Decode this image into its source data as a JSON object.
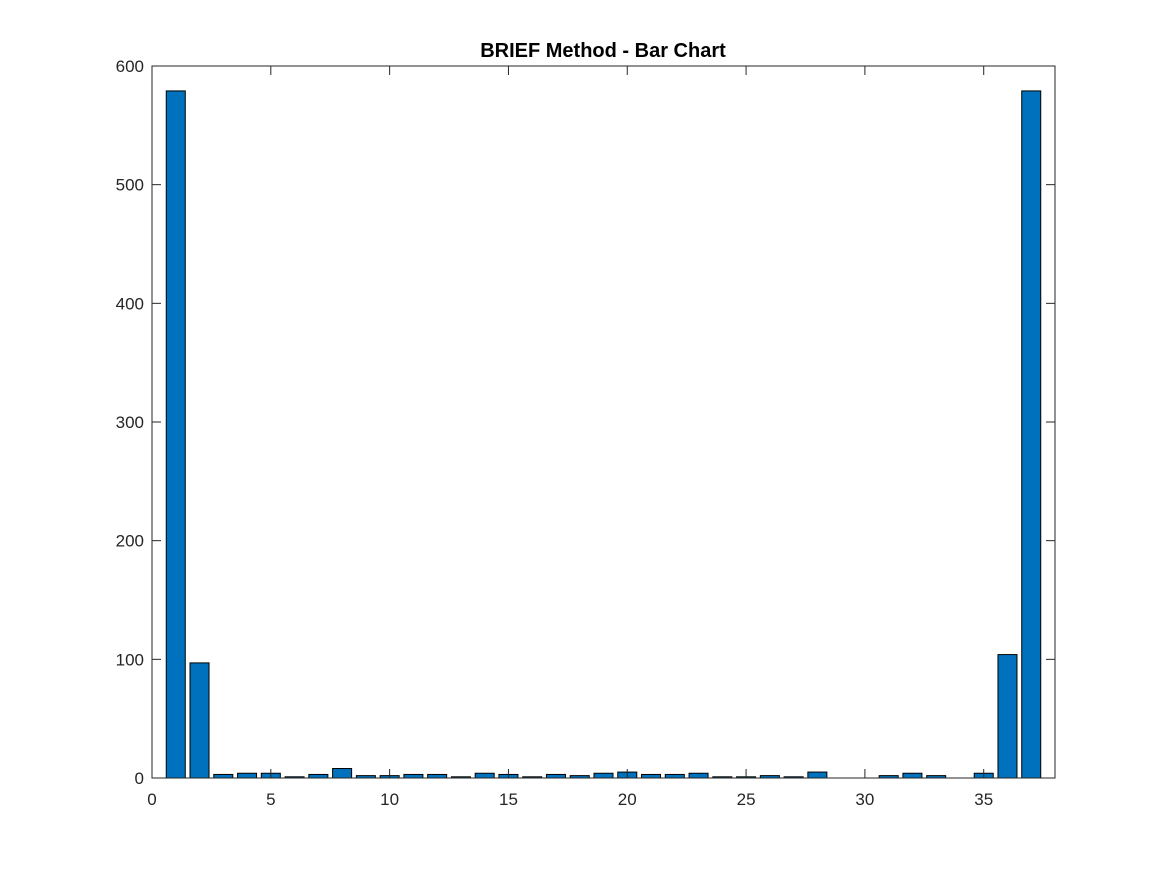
{
  "chart_data": {
    "type": "bar",
    "title": "BRIEF Method - Bar Chart",
    "xlabel": "",
    "ylabel": "",
    "x": [
      1,
      2,
      3,
      4,
      5,
      6,
      7,
      8,
      9,
      10,
      11,
      12,
      13,
      14,
      15,
      16,
      17,
      18,
      19,
      20,
      21,
      22,
      23,
      24,
      25,
      26,
      27,
      28,
      29,
      30,
      31,
      32,
      33,
      34,
      35,
      36,
      37
    ],
    "values": [
      579,
      97,
      3,
      4,
      4,
      1,
      3,
      8,
      2,
      2,
      3,
      3,
      1,
      4,
      3,
      1,
      3,
      2,
      4,
      5,
      3,
      3,
      4,
      1,
      1,
      2,
      1,
      5,
      0,
      0,
      2,
      4,
      2,
      0,
      4,
      104,
      579
    ],
    "xlim": [
      0,
      38
    ],
    "ylim": [
      0,
      600
    ],
    "xticks": [
      0,
      5,
      10,
      15,
      20,
      25,
      30,
      35
    ],
    "yticks": [
      0,
      100,
      200,
      300,
      400,
      500,
      600
    ],
    "grid": false,
    "bar_color": "#0072BD",
    "bar_edge_color": "#000000"
  }
}
